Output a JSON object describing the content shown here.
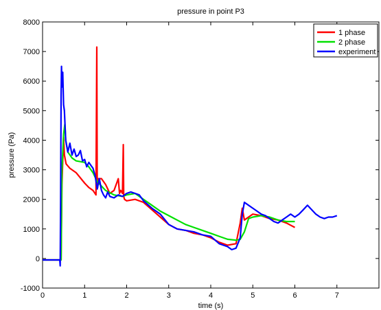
{
  "chart_data": {
    "type": "line",
    "title": "pressure in point P3",
    "xlabel": "time (s)",
    "ylabel": "pressure (Pa)",
    "xlim": [
      0,
      8
    ],
    "ylim": [
      -1000,
      8000
    ],
    "xticks": [
      "0",
      "1",
      "2",
      "3",
      "4",
      "5",
      "6",
      "7"
    ],
    "yticks": [
      "-1000",
      "0",
      "1000",
      "2000",
      "3000",
      "4000",
      "5000",
      "6000",
      "7000",
      "8000"
    ],
    "grid": false,
    "legend_position": "top-right",
    "series": [
      {
        "name": "1 phase",
        "color": "#ff0000",
        "x": [
          0.0,
          0.44,
          0.46,
          0.5,
          0.52,
          0.56,
          0.65,
          0.8,
          1.0,
          1.1,
          1.2,
          1.27,
          1.29,
          1.3,
          1.31,
          1.33,
          1.4,
          1.5,
          1.6,
          1.7,
          1.75,
          1.8,
          1.83,
          1.86,
          1.9,
          1.92,
          1.93,
          1.95,
          2.0,
          2.2,
          2.4,
          2.6,
          2.8,
          3.0,
          3.2,
          3.4,
          3.6,
          3.8,
          4.0,
          4.2,
          4.4,
          4.6,
          4.7,
          4.75,
          4.8,
          4.9,
          5.0,
          5.2,
          5.4,
          5.6,
          5.8,
          6.0
        ],
        "y": [
          -50,
          -50,
          2500,
          4100,
          3500,
          3200,
          3050,
          2900,
          2550,
          2400,
          2300,
          2150,
          7150,
          2500,
          2400,
          2700,
          2700,
          2500,
          2200,
          2300,
          2500,
          2700,
          2200,
          2300,
          2200,
          3850,
          2100,
          2000,
          1950,
          2000,
          1900,
          1650,
          1400,
          1150,
          1000,
          950,
          850,
          800,
          700,
          550,
          450,
          500,
          1200,
          1700,
          1300,
          1400,
          1500,
          1450,
          1350,
          1300,
          1200,
          1050
        ]
      },
      {
        "name": "2 phase",
        "color": "#00e000",
        "x": [
          0.0,
          0.44,
          0.46,
          0.5,
          0.53,
          0.55,
          0.6,
          0.7,
          0.8,
          1.0,
          1.1,
          1.2,
          1.3,
          1.5,
          1.7,
          1.9,
          2.0,
          2.2,
          2.4,
          2.6,
          2.8,
          3.0,
          3.2,
          3.4,
          3.6,
          3.8,
          4.0,
          4.2,
          4.4,
          4.6,
          4.7,
          4.8,
          4.9,
          5.0,
          5.2,
          5.4,
          5.6,
          5.8,
          6.0
        ],
        "y": [
          -50,
          -50,
          3000,
          4200,
          4550,
          4000,
          3600,
          3400,
          3300,
          3250,
          3100,
          2900,
          2600,
          2300,
          2150,
          2100,
          2150,
          2200,
          2000,
          1800,
          1600,
          1450,
          1300,
          1150,
          1050,
          950,
          850,
          750,
          650,
          620,
          650,
          900,
          1350,
          1400,
          1450,
          1400,
          1300,
          1250,
          1250
        ]
      },
      {
        "name": "experiment",
        "color": "#0000ff",
        "x": [
          0.0,
          0.41,
          0.42,
          0.43,
          0.44,
          0.45,
          0.46,
          0.48,
          0.5,
          0.52,
          0.55,
          0.6,
          0.65,
          0.7,
          0.75,
          0.8,
          0.85,
          0.9,
          0.95,
          1.0,
          1.05,
          1.1,
          1.15,
          1.2,
          1.25,
          1.3,
          1.35,
          1.4,
          1.45,
          1.5,
          1.55,
          1.6,
          1.7,
          1.8,
          1.9,
          2.0,
          2.1,
          2.2,
          2.3,
          2.4,
          2.6,
          2.8,
          3.0,
          3.2,
          3.4,
          3.6,
          3.8,
          4.0,
          4.2,
          4.4,
          4.5,
          4.6,
          4.7,
          4.75,
          4.8,
          4.9,
          5.0,
          5.1,
          5.2,
          5.3,
          5.4,
          5.5,
          5.6,
          5.7,
          5.8,
          5.9,
          6.0,
          6.1,
          6.2,
          6.3,
          6.4,
          6.5,
          6.6,
          6.7,
          6.8,
          6.9,
          7.0
        ],
        "y": [
          -50,
          -50,
          -250,
          2000,
          5500,
          6500,
          5800,
          6300,
          5200,
          5000,
          4000,
          3600,
          3900,
          3500,
          3700,
          3450,
          3500,
          3650,
          3300,
          3350,
          3100,
          3250,
          3150,
          3050,
          2800,
          2350,
          2700,
          2300,
          2150,
          2050,
          2250,
          2100,
          2050,
          2150,
          2100,
          2200,
          2250,
          2200,
          2150,
          1950,
          1700,
          1500,
          1150,
          1000,
          950,
          900,
          800,
          750,
          500,
          400,
          300,
          350,
          700,
          1500,
          1900,
          1800,
          1700,
          1600,
          1500,
          1450,
          1350,
          1250,
          1200,
          1300,
          1400,
          1500,
          1400,
          1500,
          1650,
          1800,
          1650,
          1500,
          1400,
          1350,
          1400,
          1400,
          1450
        ]
      }
    ]
  }
}
